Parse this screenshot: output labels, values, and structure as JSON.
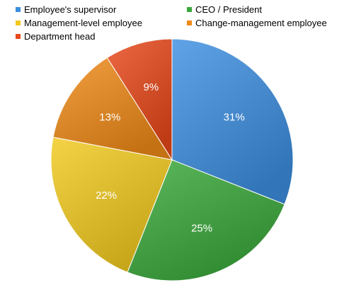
{
  "chart_data": {
    "type": "pie",
    "title": "",
    "start_angle_deg": 0,
    "direction": "clockwise",
    "slices": [
      {
        "label": "Employee's supervisor",
        "value": 31,
        "display": "31%",
        "color": "#3d8fe0"
      },
      {
        "label": "CEO / President",
        "value": 25,
        "display": "25%",
        "color": "#3aa83a"
      },
      {
        "label": "Management-level employee",
        "value": 22,
        "display": "22%",
        "color": "#f2c91e"
      },
      {
        "label": "Change-management employee",
        "value": 13,
        "display": "13%",
        "color": "#ef8a17"
      },
      {
        "label": "Department head",
        "value": 9,
        "display": "9%",
        "color": "#e8481a"
      }
    ],
    "legend": {
      "placement": "top",
      "columns": 2
    }
  }
}
